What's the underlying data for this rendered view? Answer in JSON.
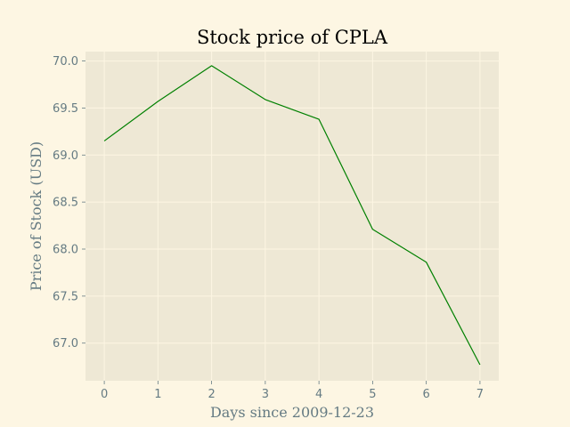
{
  "chart_data": {
    "type": "line",
    "title": "Stock price of CPLA",
    "xlabel": "Days since 2009-12-23",
    "ylabel": "Price of Stock (USD)",
    "x": [
      0,
      1,
      2,
      3,
      4,
      5,
      6,
      7
    ],
    "series": [
      {
        "values": [
          69.15,
          69.57,
          69.95,
          69.59,
          69.38,
          68.21,
          67.86,
          66.77
        ],
        "color": "#008000"
      }
    ],
    "xticks": [
      0,
      1,
      2,
      3,
      4,
      5,
      6,
      7
    ],
    "xtick_labels": [
      "0",
      "1",
      "2",
      "3",
      "4",
      "5",
      "6",
      "7"
    ],
    "yticks": [
      67.0,
      67.5,
      68.0,
      68.5,
      69.0,
      69.5,
      70.0
    ],
    "ytick_labels": [
      "67.0",
      "67.5",
      "68.0",
      "68.5",
      "69.0",
      "69.5",
      "70.0"
    ],
    "xlim": [
      -0.35,
      7.35
    ],
    "ylim": [
      66.6,
      70.1
    ],
    "grid": true,
    "legend": false,
    "colors": {
      "figure_background": "#fdf6e3",
      "plot_background": "#eee8d5",
      "grid": "#fdf6e3",
      "text": "#657b83",
      "title": "#000000",
      "line": "#008000"
    }
  }
}
